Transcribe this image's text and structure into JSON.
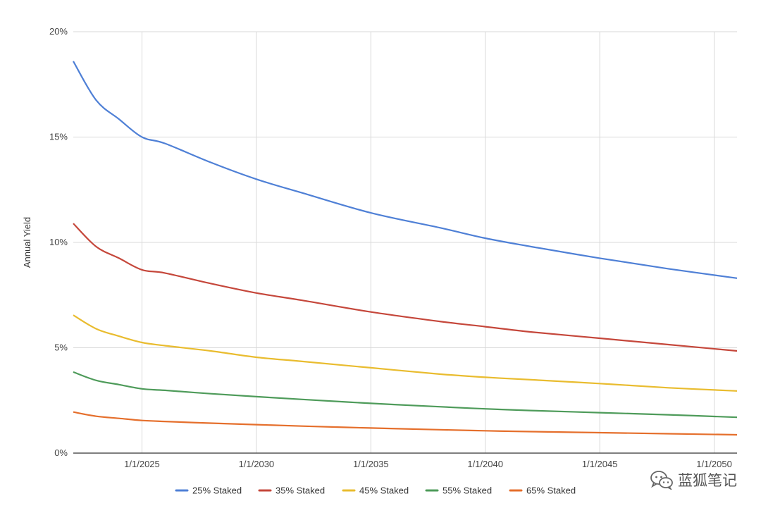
{
  "chart_data": {
    "type": "line",
    "ylabel": "Annual Yield",
    "xlabel": "",
    "y_tick_labels": [
      "0%",
      "5%",
      "10%",
      "15%",
      "20%"
    ],
    "y_ticks": [
      0,
      5,
      10,
      15,
      20
    ],
    "ylim": [
      0,
      20
    ],
    "x_tick_labels": [
      "1/1/2025",
      "1/1/2030",
      "1/1/2035",
      "1/1/2040",
      "1/1/2045",
      "1/1/2050"
    ],
    "x_ticks": [
      "2025-01-01",
      "2030-01-01",
      "2035-01-01",
      "2040-01-01",
      "2045-01-01",
      "2050-01-01"
    ],
    "xlim": [
      "2022-01-01",
      "2051-01-01"
    ],
    "grid": true,
    "legend_position": "bottom",
    "x": [
      "2022-01-01",
      "2023-01-01",
      "2024-01-01",
      "2025-01-01",
      "2026-01-01",
      "2028-01-01",
      "2030-01-01",
      "2032-01-01",
      "2035-01-01",
      "2038-01-01",
      "2040-01-01",
      "2042-01-01",
      "2045-01-01",
      "2048-01-01",
      "2051-01-01"
    ],
    "series": [
      {
        "name": "25% Staked",
        "color": "#4f80d6",
        "values": [
          18.6,
          16.75,
          15.85,
          15.0,
          14.7,
          13.8,
          13.0,
          12.35,
          11.4,
          10.7,
          10.2,
          9.8,
          9.25,
          8.75,
          8.3
        ]
      },
      {
        "name": "35% Staked",
        "color": "#c5473b",
        "values": [
          10.9,
          9.8,
          9.25,
          8.7,
          8.55,
          8.05,
          7.6,
          7.25,
          6.7,
          6.25,
          6.0,
          5.75,
          5.45,
          5.15,
          4.85
        ]
      },
      {
        "name": "45% Staked",
        "color": "#e9bc2f",
        "values": [
          6.55,
          5.9,
          5.55,
          5.25,
          5.1,
          4.85,
          4.55,
          4.35,
          4.05,
          3.75,
          3.6,
          3.48,
          3.3,
          3.1,
          2.95
        ]
      },
      {
        "name": "55% Staked",
        "color": "#4e9b5a",
        "values": [
          3.85,
          3.45,
          3.25,
          3.05,
          2.98,
          2.82,
          2.68,
          2.55,
          2.36,
          2.2,
          2.1,
          2.02,
          1.92,
          1.82,
          1.7
        ]
      },
      {
        "name": "65% Staked",
        "color": "#e56f2c",
        "values": [
          1.95,
          1.75,
          1.65,
          1.55,
          1.5,
          1.42,
          1.35,
          1.28,
          1.19,
          1.11,
          1.06,
          1.02,
          0.97,
          0.92,
          0.87
        ]
      }
    ]
  },
  "watermark": {
    "text": "蓝狐笔记",
    "icon": "wechat-icon"
  }
}
